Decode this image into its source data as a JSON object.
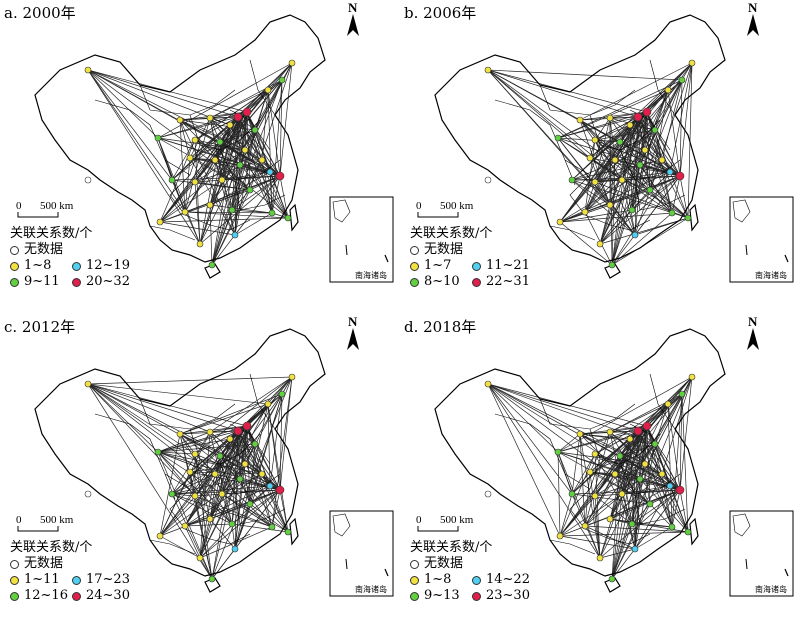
{
  "panels": [
    {
      "title": "a. 2000年",
      "legend": {
        "l1": "1~8",
        "l2": "12~19",
        "l3": "9~11",
        "l4": "20~32"
      }
    },
    {
      "title": "b. 2006年",
      "legend": {
        "l1": "1~7",
        "l2": "11~21",
        "l3": "8~10",
        "l4": "22~31"
      }
    },
    {
      "title": "c. 2012年",
      "legend": {
        "l1": "1~11",
        "l2": "17~23",
        "l3": "12~16",
        "l4": "24~30"
      }
    },
    {
      "title": "d. 2018年",
      "legend": {
        "l1": "1~8",
        "l2": "14~22",
        "l3": "9~13",
        "l4": "23~30"
      }
    }
  ],
  "common": {
    "north": "N",
    "scale_zero": "0",
    "scale_label": "500 km",
    "legend_title": "关联关系数/个",
    "no_data": "无数据",
    "inset": "南海诸岛"
  },
  "colors": {
    "c1": "#f0e040",
    "c2": "#4fd0f0",
    "c3": "#60d040",
    "c4": "#e0204a"
  }
}
